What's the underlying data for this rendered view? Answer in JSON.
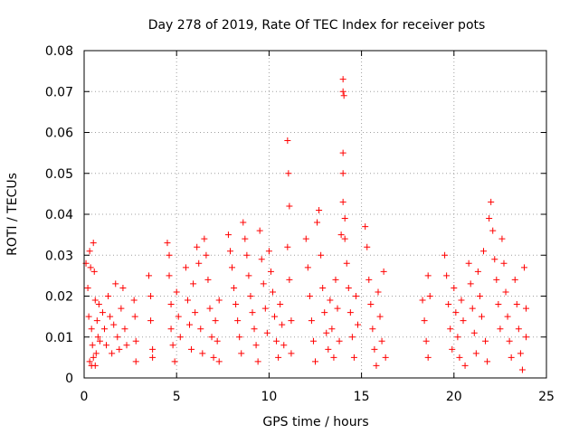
{
  "chart_data": {
    "type": "scatter",
    "title": "Day 278 of 2019, Rate Of TEC Index for receiver pots",
    "xlabel": "GPS time / hours",
    "ylabel": "ROTI / TECUs",
    "xlim": [
      0,
      25
    ],
    "ylim": [
      0,
      0.08
    ],
    "xticks": [
      0,
      5,
      10,
      15,
      20,
      25
    ],
    "yticks": [
      0,
      0.01,
      0.02,
      0.03,
      0.04,
      0.05,
      0.06,
      0.07,
      0.08
    ],
    "xtick_labels": [
      "0",
      "5",
      "10",
      "15",
      "20",
      "25"
    ],
    "ytick_labels": [
      "0",
      "0.01",
      "0.02",
      "0.03",
      "0.04",
      "0.05",
      "0.06",
      "0.07",
      "0.08"
    ],
    "grid": true,
    "marker": "+",
    "marker_color": "#ff0000",
    "series": [
      {
        "name": "ROTI",
        "points": [
          [
            0.1,
            0.028
          ],
          [
            0.2,
            0.022
          ],
          [
            0.25,
            0.015
          ],
          [
            0.3,
            0.031
          ],
          [
            0.35,
            0.027
          ],
          [
            0.4,
            0.012
          ],
          [
            0.45,
            0.008
          ],
          [
            0.5,
            0.033
          ],
          [
            0.55,
            0.026
          ],
          [
            0.6,
            0.019
          ],
          [
            0.65,
            0.006
          ],
          [
            0.7,
            0.014
          ],
          [
            0.3,
            0.004
          ],
          [
            0.4,
            0.003
          ],
          [
            0.5,
            0.005
          ],
          [
            0.6,
            0.003
          ],
          [
            0.75,
            0.01
          ],
          [
            0.8,
            0.018
          ],
          [
            0.85,
            0.009
          ],
          [
            1.0,
            0.016
          ],
          [
            1.1,
            0.012
          ],
          [
            1.2,
            0.008
          ],
          [
            1.3,
            0.02
          ],
          [
            1.4,
            0.015
          ],
          [
            1.5,
            0.006
          ],
          [
            1.6,
            0.013
          ],
          [
            1.7,
            0.023
          ],
          [
            1.8,
            0.01
          ],
          [
            1.9,
            0.007
          ],
          [
            2.0,
            0.017
          ],
          [
            2.1,
            0.022
          ],
          [
            2.2,
            0.012
          ],
          [
            2.3,
            0.008
          ],
          [
            2.7,
            0.019
          ],
          [
            2.75,
            0.015
          ],
          [
            2.8,
            0.009
          ],
          [
            2.8,
            0.004
          ],
          [
            3.5,
            0.025
          ],
          [
            3.6,
            0.02
          ],
          [
            3.6,
            0.014
          ],
          [
            3.7,
            0.007
          ],
          [
            3.7,
            0.005
          ],
          [
            4.5,
            0.033
          ],
          [
            4.6,
            0.03
          ],
          [
            4.6,
            0.025
          ],
          [
            4.7,
            0.018
          ],
          [
            4.7,
            0.012
          ],
          [
            4.8,
            0.008
          ],
          [
            4.9,
            0.004
          ],
          [
            5.0,
            0.021
          ],
          [
            5.1,
            0.015
          ],
          [
            5.2,
            0.01
          ],
          [
            5.5,
            0.027
          ],
          [
            5.6,
            0.019
          ],
          [
            5.7,
            0.013
          ],
          [
            5.8,
            0.007
          ],
          [
            5.9,
            0.023
          ],
          [
            6.0,
            0.016
          ],
          [
            6.1,
            0.032
          ],
          [
            6.2,
            0.028
          ],
          [
            6.3,
            0.012
          ],
          [
            6.4,
            0.006
          ],
          [
            6.5,
            0.034
          ],
          [
            6.6,
            0.03
          ],
          [
            6.7,
            0.024
          ],
          [
            6.8,
            0.017
          ],
          [
            6.9,
            0.01
          ],
          [
            7.0,
            0.005
          ],
          [
            7.1,
            0.014
          ],
          [
            7.2,
            0.009
          ],
          [
            7.3,
            0.019
          ],
          [
            7.3,
            0.004
          ],
          [
            7.8,
            0.035
          ],
          [
            7.9,
            0.031
          ],
          [
            8.0,
            0.027
          ],
          [
            8.1,
            0.022
          ],
          [
            8.2,
            0.018
          ],
          [
            8.3,
            0.014
          ],
          [
            8.4,
            0.01
          ],
          [
            8.5,
            0.006
          ],
          [
            8.6,
            0.038
          ],
          [
            8.7,
            0.034
          ],
          [
            8.8,
            0.03
          ],
          [
            8.9,
            0.025
          ],
          [
            9.0,
            0.02
          ],
          [
            9.1,
            0.016
          ],
          [
            9.2,
            0.012
          ],
          [
            9.3,
            0.008
          ],
          [
            9.4,
            0.004
          ],
          [
            9.5,
            0.036
          ],
          [
            9.6,
            0.029
          ],
          [
            9.7,
            0.023
          ],
          [
            9.8,
            0.017
          ],
          [
            9.9,
            0.011
          ],
          [
            10.0,
            0.031
          ],
          [
            10.1,
            0.026
          ],
          [
            10.2,
            0.021
          ],
          [
            10.3,
            0.015
          ],
          [
            10.4,
            0.009
          ],
          [
            10.5,
            0.005
          ],
          [
            10.6,
            0.018
          ],
          [
            10.7,
            0.013
          ],
          [
            10.8,
            0.008
          ],
          [
            11.0,
            0.058
          ],
          [
            11.05,
            0.05
          ],
          [
            11.1,
            0.042
          ],
          [
            11.0,
            0.032
          ],
          [
            11.1,
            0.024
          ],
          [
            11.2,
            0.014
          ],
          [
            11.2,
            0.006
          ],
          [
            12.0,
            0.034
          ],
          [
            12.1,
            0.027
          ],
          [
            12.2,
            0.02
          ],
          [
            12.3,
            0.014
          ],
          [
            12.4,
            0.009
          ],
          [
            12.5,
            0.004
          ],
          [
            12.6,
            0.038
          ],
          [
            12.7,
            0.041
          ],
          [
            12.8,
            0.03
          ],
          [
            12.9,
            0.022
          ],
          [
            13.0,
            0.016
          ],
          [
            13.1,
            0.011
          ],
          [
            13.2,
            0.007
          ],
          [
            13.3,
            0.019
          ],
          [
            13.4,
            0.012
          ],
          [
            13.5,
            0.005
          ],
          [
            13.6,
            0.024
          ],
          [
            13.7,
            0.017
          ],
          [
            13.8,
            0.009
          ],
          [
            13.9,
            0.035
          ],
          [
            14.0,
            0.073
          ],
          [
            14.0,
            0.07
          ],
          [
            14.05,
            0.069
          ],
          [
            14.0,
            0.055
          ],
          [
            14.0,
            0.05
          ],
          [
            14.0,
            0.043
          ],
          [
            14.1,
            0.039
          ],
          [
            14.1,
            0.034
          ],
          [
            14.2,
            0.028
          ],
          [
            14.3,
            0.022
          ],
          [
            14.4,
            0.016
          ],
          [
            14.5,
            0.01
          ],
          [
            14.6,
            0.005
          ],
          [
            14.7,
            0.02
          ],
          [
            14.8,
            0.013
          ],
          [
            15.2,
            0.037
          ],
          [
            15.3,
            0.032
          ],
          [
            15.4,
            0.024
          ],
          [
            15.5,
            0.018
          ],
          [
            15.6,
            0.012
          ],
          [
            15.7,
            0.007
          ],
          [
            15.8,
            0.003
          ],
          [
            15.9,
            0.021
          ],
          [
            16.0,
            0.015
          ],
          [
            16.1,
            0.009
          ],
          [
            16.2,
            0.026
          ],
          [
            16.3,
            0.005
          ],
          [
            18.3,
            0.019
          ],
          [
            18.4,
            0.014
          ],
          [
            18.5,
            0.009
          ],
          [
            18.6,
            0.005
          ],
          [
            18.6,
            0.025
          ],
          [
            18.7,
            0.02
          ],
          [
            19.5,
            0.03
          ],
          [
            19.6,
            0.025
          ],
          [
            19.7,
            0.018
          ],
          [
            19.8,
            0.012
          ],
          [
            19.9,
            0.007
          ],
          [
            20.0,
            0.022
          ],
          [
            20.1,
            0.016
          ],
          [
            20.2,
            0.01
          ],
          [
            20.3,
            0.005
          ],
          [
            20.4,
            0.019
          ],
          [
            20.5,
            0.014
          ],
          [
            20.6,
            0.003
          ],
          [
            20.8,
            0.028
          ],
          [
            20.9,
            0.023
          ],
          [
            21.0,
            0.017
          ],
          [
            21.1,
            0.011
          ],
          [
            21.2,
            0.006
          ],
          [
            21.3,
            0.026
          ],
          [
            21.4,
            0.02
          ],
          [
            21.5,
            0.015
          ],
          [
            21.6,
            0.031
          ],
          [
            21.7,
            0.009
          ],
          [
            21.8,
            0.004
          ],
          [
            21.9,
            0.039
          ],
          [
            22.0,
            0.043
          ],
          [
            22.1,
            0.036
          ],
          [
            22.2,
            0.029
          ],
          [
            22.3,
            0.024
          ],
          [
            22.4,
            0.018
          ],
          [
            22.5,
            0.012
          ],
          [
            22.6,
            0.034
          ],
          [
            22.7,
            0.028
          ],
          [
            22.8,
            0.021
          ],
          [
            22.9,
            0.015
          ],
          [
            23.0,
            0.009
          ],
          [
            23.1,
            0.005
          ],
          [
            23.3,
            0.024
          ],
          [
            23.4,
            0.018
          ],
          [
            23.5,
            0.012
          ],
          [
            23.6,
            0.006
          ],
          [
            23.7,
            0.002
          ],
          [
            23.8,
            0.027
          ],
          [
            23.9,
            0.017
          ],
          [
            23.9,
            0.01
          ]
        ]
      }
    ]
  }
}
